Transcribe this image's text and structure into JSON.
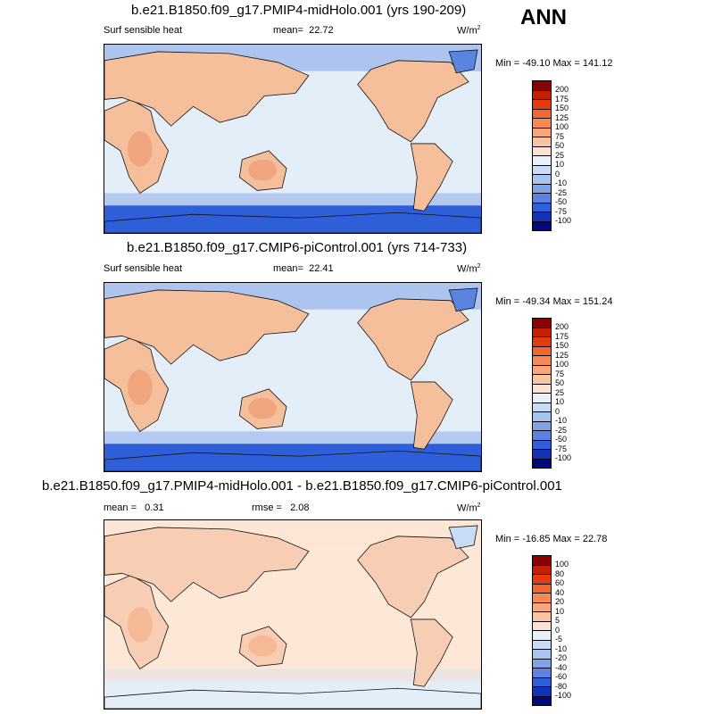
{
  "season_label": "ANN",
  "panels": [
    {
      "title": "b.e21.B1850.f09_g17.PMIP4-midHolo.001 (yrs 190-209)",
      "left_label": "Surf sensible heat",
      "mean_label": "mean=",
      "mean_value": "22.72",
      "units_base": "W/m",
      "units_exp": "2",
      "minmax": "Min = -49.10 Max = 141.12",
      "scale": "abs"
    },
    {
      "title": "b.e21.B1850.f09_g17.CMIP6-piControl.001 (yrs 714-733)",
      "left_label": "Surf sensible heat",
      "mean_label": "mean=",
      "mean_value": "22.41",
      "units_base": "W/m",
      "units_exp": "2",
      "minmax": "Min = -49.34 Max = 151.24",
      "scale": "abs"
    },
    {
      "title": "b.e21.B1850.f09_g17.PMIP4-midHolo.001 - b.e21.B1850.f09_g17.CMIP6-piControl.001",
      "left_label": "mean =",
      "left_value": "0.31",
      "rmse_label": "rmse =",
      "rmse_value": "2.08",
      "units_base": "W/m",
      "units_exp": "2",
      "minmax": "Min = -16.85 Max = 22.78",
      "scale": "diff"
    }
  ],
  "colorbars": {
    "abs": {
      "labels": [
        "200",
        "175",
        "150",
        "125",
        "100",
        "75",
        "50",
        "25",
        "10",
        "0",
        "-10",
        "-25",
        "-50",
        "-75",
        "-100"
      ],
      "colors": [
        "#8b0000",
        "#c42000",
        "#e33a10",
        "#f26630",
        "#f58a55",
        "#f8a77a",
        "#fac4a2",
        "#fde3cf",
        "#e8f1fb",
        "#c9dcf5",
        "#a8c4ef",
        "#7fa3e6",
        "#5a84e0",
        "#2e5ed8",
        "#1232b8",
        "#000a80"
      ]
    },
    "diff": {
      "labels": [
        "100",
        "80",
        "60",
        "40",
        "20",
        "10",
        "5",
        "0",
        "-5",
        "-10",
        "-20",
        "-40",
        "-60",
        "-80",
        "-100"
      ],
      "colors": [
        "#8b0000",
        "#c42000",
        "#e33a10",
        "#f26630",
        "#f58a55",
        "#f8a77a",
        "#fac4a2",
        "#fde3cf",
        "#e8f1fb",
        "#c9dcf5",
        "#a8c4ef",
        "#7fa3e6",
        "#5a84e0",
        "#2e5ed8",
        "#1232b8",
        "#000a80"
      ]
    }
  }
}
